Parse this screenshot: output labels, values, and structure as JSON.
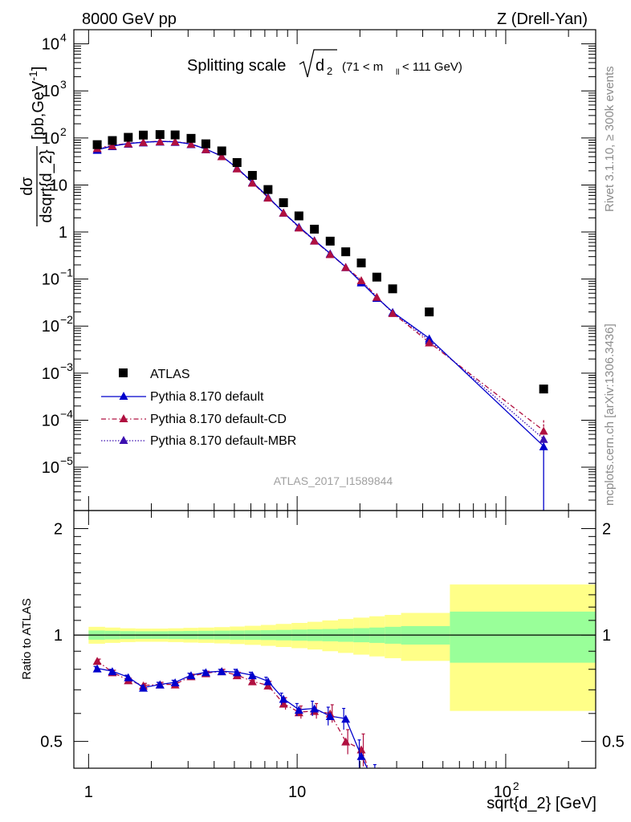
{
  "header": {
    "left": "8000 GeV pp",
    "right": "Z (Drell-Yan)"
  },
  "side_labels": {
    "rivet": "Rivet 3.1.10, ≥ 300k events",
    "mcplots": "mcplots.cern.ch [arXiv:1306.3436]"
  },
  "colors": {
    "atlas": "#000000",
    "default": "#0000cc",
    "cd": "#b01040",
    "mbr": "#3b0fb0",
    "band_outer": "#ffff88",
    "band_inner": "#99ff99"
  },
  "chart_data": [
    {
      "type": "scatter",
      "panel": "main",
      "title_main": "Splitting scale",
      "title_sqrt": "d",
      "title_sub": "2",
      "title_range": "(71 < m",
      "title_range_sub": "ll",
      "title_range_end": " < 111 GeV)",
      "ylabel_num": "dσ",
      "ylabel_den": "dsqrt{d_2}",
      "ylabel_units": "[pb,GeV",
      "ylabel_units_exp": "-1",
      "ylabel_units_end": "]",
      "watermark": "ATLAS_2017_I1589844",
      "xscale": "log",
      "yscale": "log",
      "xlim": [
        0.85,
        270
      ],
      "ylim": [
        1.2e-06,
        20000
      ],
      "y_ticks": [
        {
          "v": 1e-05,
          "base": "10",
          "exp": "−5"
        },
        {
          "v": 0.0001,
          "base": "10",
          "exp": "−4"
        },
        {
          "v": 0.001,
          "base": "10",
          "exp": "−3"
        },
        {
          "v": 0.01,
          "base": "10",
          "exp": "−2"
        },
        {
          "v": 0.1,
          "base": "10",
          "exp": "−1"
        },
        {
          "v": 1,
          "base": "1",
          "exp": ""
        },
        {
          "v": 10,
          "base": "10",
          "exp": ""
        },
        {
          "v": 100,
          "base": "10",
          "exp": "2"
        },
        {
          "v": 1000,
          "base": "10",
          "exp": "3"
        },
        {
          "v": 10000,
          "base": "10",
          "exp": "4"
        }
      ],
      "legend": {
        "position": "middle-left",
        "entries": [
          {
            "label": "ATLAS",
            "style": "square"
          },
          {
            "label": "Pythia 8.170 default",
            "style": "solid"
          },
          {
            "label": "Pythia 8.170 default-CD",
            "style": "dashdot"
          },
          {
            "label": "Pythia 8.170 default-MBR",
            "style": "dotted"
          }
        ]
      },
      "x": [
        1.1,
        1.3,
        1.55,
        1.83,
        2.2,
        2.6,
        3.1,
        3.65,
        4.35,
        5.15,
        6.1,
        7.25,
        8.6,
        10.2,
        12.1,
        14.4,
        17.1,
        20.3,
        24.1,
        28.7,
        43.0,
        152.0
      ],
      "series": [
        {
          "name": "ATLAS",
          "values": [
            72,
            88,
            103,
            115,
            118,
            116,
            98,
            75,
            53,
            30,
            16,
            8.0,
            4.2,
            2.2,
            1.15,
            0.64,
            0.38,
            0.22,
            0.11,
            0.062,
            0.02,
            0.00046
          ]
        },
        {
          "name": "Pythia 8.170 default",
          "values": [
            56,
            67,
            76,
            81,
            84,
            83,
            74,
            58,
            41,
            23,
            11.5,
            5.6,
            2.6,
            1.3,
            0.67,
            0.35,
            0.18,
            0.085,
            0.04,
            0.02,
            0.0055,
            2.8e-05
          ],
          "last_point_err_low_to_axis": true
        },
        {
          "name": "Pythia 8.170 default-CD",
          "values": [
            61,
            69,
            77,
            82,
            85,
            84,
            75,
            58,
            41,
            22.5,
            11.2,
            5.4,
            2.6,
            1.25,
            0.66,
            0.34,
            0.18,
            0.095,
            0.042,
            0.019,
            0.0045,
            6e-05
          ]
        },
        {
          "name": "Pythia 8.170 default-MBR",
          "values": [
            58,
            68,
            76,
            81,
            84,
            83,
            74,
            58,
            41,
            23,
            11.3,
            5.5,
            2.6,
            1.28,
            0.66,
            0.35,
            0.18,
            0.09,
            0.041,
            0.0195,
            0.005,
            4e-05
          ]
        }
      ]
    },
    {
      "type": "line",
      "panel": "ratio",
      "ylabel": "Ratio to ATLAS",
      "xlabel": "sqrt{d_2} [GeV]",
      "xscale": "log",
      "xlim": [
        0.85,
        270
      ],
      "ylim": [
        0.42,
        2.25
      ],
      "y_ticks": [
        {
          "v": 0.5,
          "label": "0.5"
        },
        {
          "v": 1,
          "label": "1"
        },
        {
          "v": 2,
          "label": "2"
        }
      ],
      "x_ticks": [
        {
          "v": 1,
          "base": "1",
          "exp": ""
        },
        {
          "v": 10,
          "base": "10",
          "exp": ""
        },
        {
          "v": 100,
          "base": "10",
          "exp": "2"
        }
      ],
      "bands": {
        "bins": [
          1.0,
          1.2,
          1.42,
          1.68,
          2.0,
          2.4,
          2.85,
          3.35,
          4.0,
          4.75,
          5.6,
          6.7,
          7.9,
          9.4,
          11.2,
          13.2,
          15.7,
          18.6,
          22.2,
          26.3,
          31.5,
          54.0,
          270.0
        ],
        "outer_half": [
          0.055,
          0.05,
          0.045,
          0.043,
          0.043,
          0.045,
          0.048,
          0.05,
          0.053,
          0.057,
          0.062,
          0.068,
          0.075,
          0.082,
          0.09,
          0.1,
          0.11,
          0.12,
          0.13,
          0.14,
          0.155,
          0.39
        ],
        "inner_half": [
          0.03,
          0.028,
          0.026,
          0.025,
          0.025,
          0.026,
          0.027,
          0.028,
          0.029,
          0.03,
          0.031,
          0.032,
          0.034,
          0.036,
          0.038,
          0.04,
          0.043,
          0.046,
          0.05,
          0.055,
          0.06,
          0.165
        ]
      },
      "series": [
        {
          "name": "Pythia 8.170 default",
          "values": [
            0.805,
            0.79,
            0.76,
            0.71,
            0.725,
            0.735,
            0.77,
            0.785,
            0.79,
            0.785,
            0.77,
            0.74,
            0.66,
            0.615,
            0.62,
            0.59,
            0.58,
            0.455,
            0.37
          ],
          "errors": [
            0.01,
            0.01,
            0.01,
            0.01,
            0.01,
            0.01,
            0.01,
            0.01,
            0.01,
            0.015,
            0.015,
            0.02,
            0.025,
            0.025,
            0.03,
            0.035,
            0.04,
            0.05,
            0.06
          ]
        },
        {
          "name": "Pythia 8.170 default-CD",
          "values": [
            0.845,
            0.785,
            0.745,
            0.72,
            0.725,
            0.725,
            0.765,
            0.78,
            0.79,
            0.77,
            0.74,
            0.72,
            0.64,
            0.605,
            0.61,
            0.6,
            0.5,
            0.475,
            0.36
          ],
          "errors": [
            0.01,
            0.01,
            0.01,
            0.01,
            0.01,
            0.01,
            0.01,
            0.01,
            0.01,
            0.015,
            0.015,
            0.02,
            0.025,
            0.025,
            0.03,
            0.035,
            0.04,
            0.05,
            0.06
          ]
        }
      ]
    }
  ]
}
